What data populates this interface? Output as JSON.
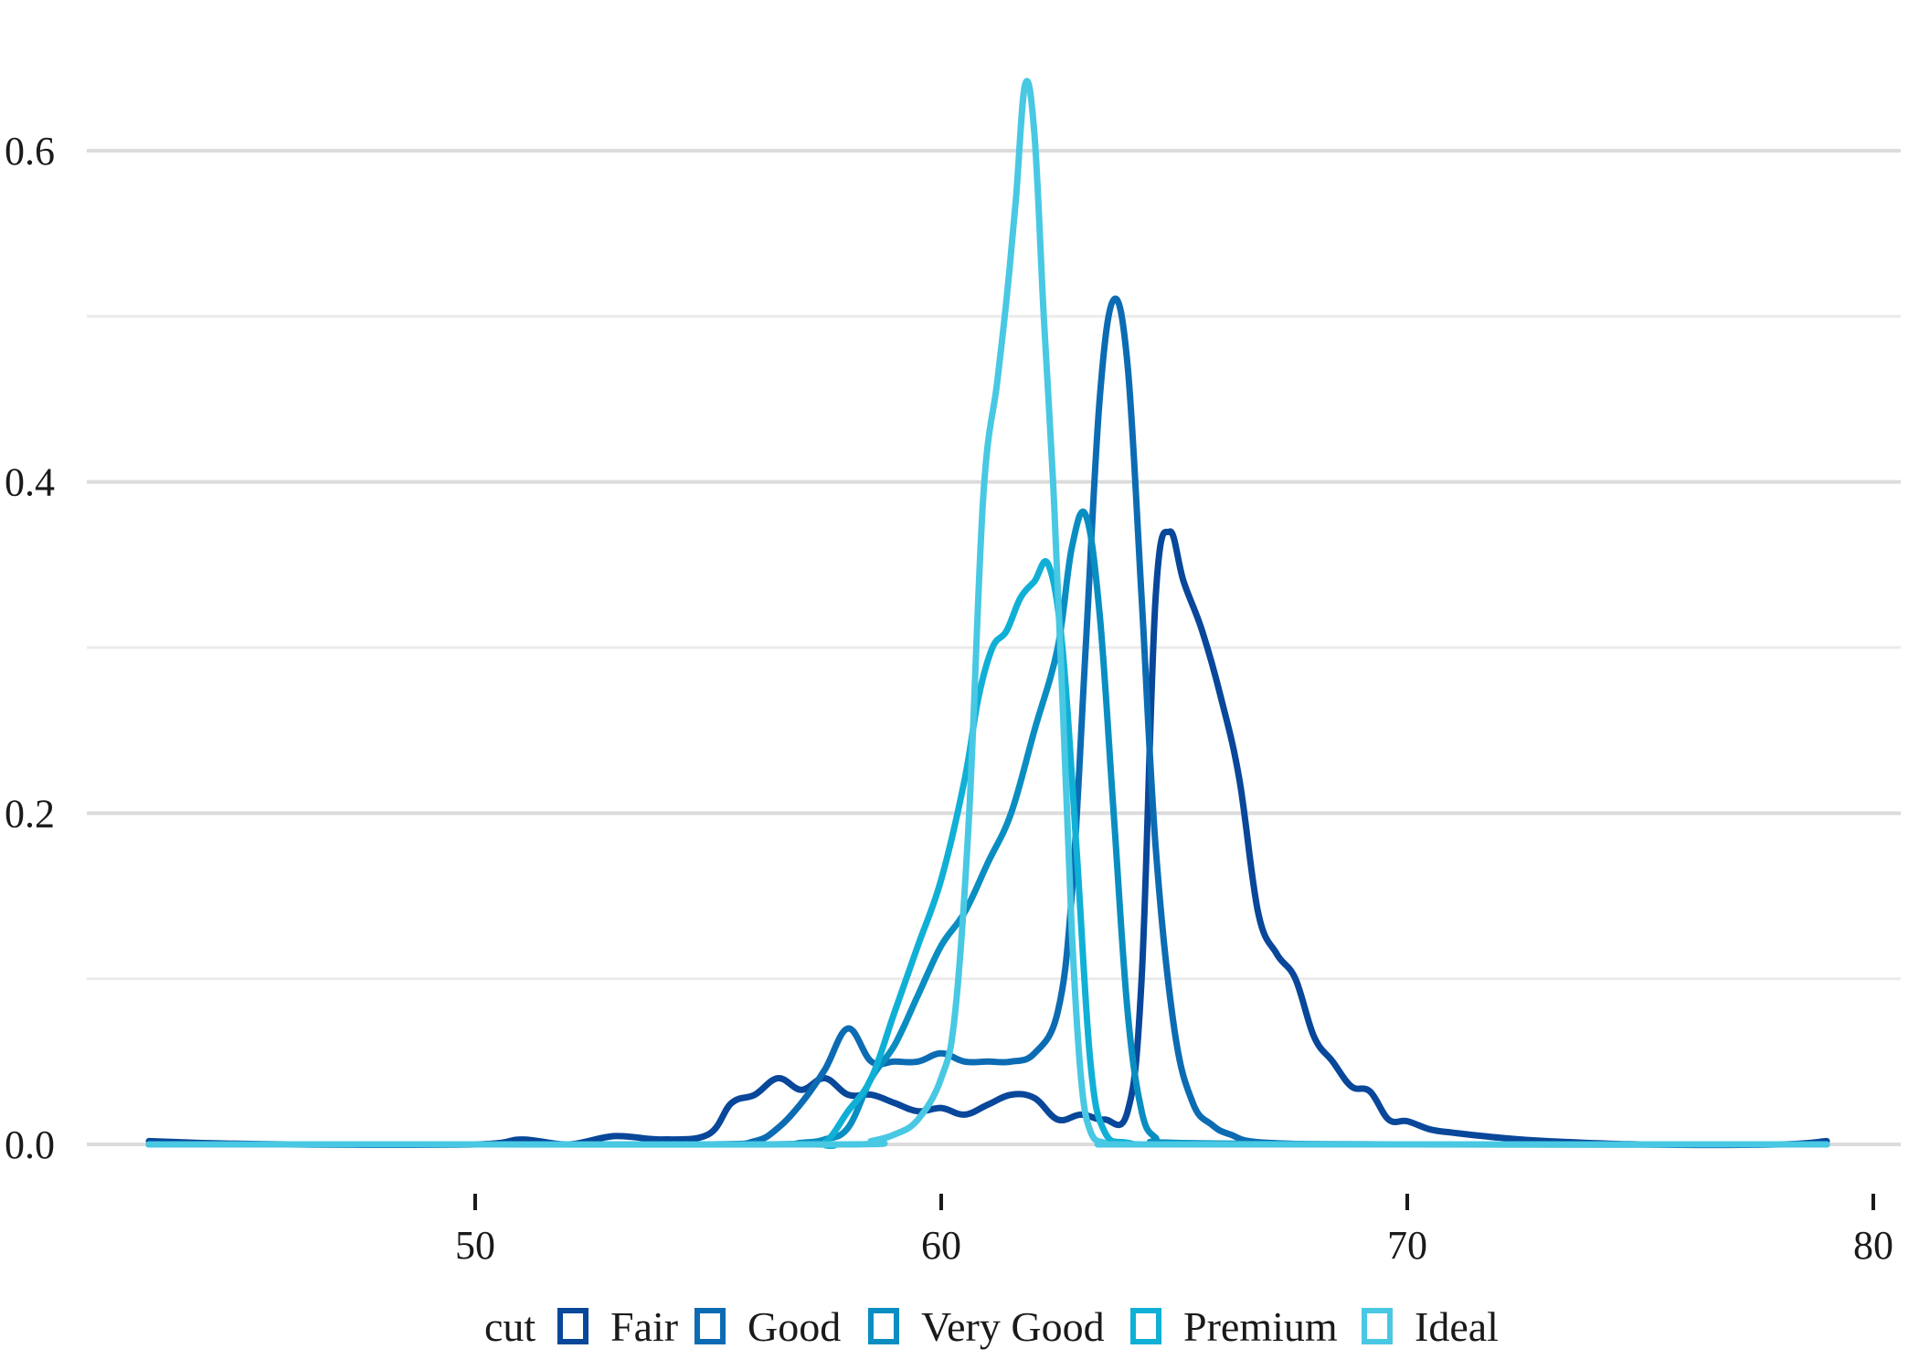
{
  "chart_data": {
    "type": "line",
    "title": "",
    "xlabel": "",
    "ylabel": "",
    "xlim": [
      42.5,
      80.5
    ],
    "ylim": [
      -0.04,
      0.68
    ],
    "x_ticks": [
      50,
      60,
      70,
      80
    ],
    "x_tick_labels": [
      "50",
      "60",
      "70",
      "80"
    ],
    "y_ticks": [
      0.0,
      0.2,
      0.4,
      0.6
    ],
    "y_tick_labels": [
      "0.0",
      "0.2",
      "0.4",
      "0.6"
    ],
    "y_minor_ticks": [
      0.1,
      0.3,
      0.5
    ],
    "grid": true,
    "legend": {
      "title": "cut",
      "position": "bottom",
      "entries": [
        "Fair",
        "Good",
        "Very Good",
        "Premium",
        "Ideal"
      ]
    },
    "series": [
      {
        "name": "Fair",
        "color": "#08479a",
        "points": [
          [
            43.0,
            0.002
          ],
          [
            44.0,
            0.001
          ],
          [
            46.0,
            0.0
          ],
          [
            50.0,
            0.0
          ],
          [
            51.0,
            0.003
          ],
          [
            52.0,
            0.0
          ],
          [
            53.0,
            0.005
          ],
          [
            54.0,
            0.003
          ],
          [
            55.0,
            0.006
          ],
          [
            55.5,
            0.025
          ],
          [
            56.0,
            0.03
          ],
          [
            56.5,
            0.04
          ],
          [
            57.0,
            0.033
          ],
          [
            57.5,
            0.04
          ],
          [
            58.0,
            0.03
          ],
          [
            58.5,
            0.03
          ],
          [
            59.0,
            0.025
          ],
          [
            59.5,
            0.02
          ],
          [
            60.0,
            0.022
          ],
          [
            60.5,
            0.018
          ],
          [
            61.0,
            0.024
          ],
          [
            61.5,
            0.03
          ],
          [
            62.0,
            0.028
          ],
          [
            62.5,
            0.015
          ],
          [
            63.0,
            0.018
          ],
          [
            63.5,
            0.015
          ],
          [
            64.0,
            0.02
          ],
          [
            64.3,
            0.1
          ],
          [
            64.6,
            0.33
          ],
          [
            64.9,
            0.37
          ],
          [
            65.2,
            0.34
          ],
          [
            65.6,
            0.31
          ],
          [
            66.0,
            0.27
          ],
          [
            66.4,
            0.22
          ],
          [
            66.8,
            0.14
          ],
          [
            67.2,
            0.115
          ],
          [
            67.6,
            0.1
          ],
          [
            68.0,
            0.065
          ],
          [
            68.4,
            0.05
          ],
          [
            68.8,
            0.035
          ],
          [
            69.2,
            0.032
          ],
          [
            69.6,
            0.015
          ],
          [
            70.0,
            0.014
          ],
          [
            70.5,
            0.009
          ],
          [
            71.0,
            0.007
          ],
          [
            72.0,
            0.004
          ],
          [
            73.0,
            0.002
          ],
          [
            75.0,
            0.0
          ],
          [
            78.0,
            0.0
          ],
          [
            79.0,
            0.002
          ]
        ]
      },
      {
        "name": "Good",
        "color": "#0c6cb3",
        "points": [
          [
            43.0,
            0.0
          ],
          [
            50.0,
            0.0
          ],
          [
            55.0,
            0.0
          ],
          [
            56.0,
            0.002
          ],
          [
            56.5,
            0.01
          ],
          [
            57.0,
            0.025
          ],
          [
            57.5,
            0.045
          ],
          [
            58.0,
            0.07
          ],
          [
            58.5,
            0.05
          ],
          [
            59.0,
            0.05
          ],
          [
            59.5,
            0.05
          ],
          [
            60.0,
            0.055
          ],
          [
            60.5,
            0.05
          ],
          [
            61.0,
            0.05
          ],
          [
            61.5,
            0.05
          ],
          [
            62.0,
            0.055
          ],
          [
            62.5,
            0.08
          ],
          [
            62.8,
            0.15
          ],
          [
            63.1,
            0.3
          ],
          [
            63.4,
            0.45
          ],
          [
            63.7,
            0.51
          ],
          [
            64.0,
            0.47
          ],
          [
            64.3,
            0.33
          ],
          [
            64.6,
            0.18
          ],
          [
            65.0,
            0.07
          ],
          [
            65.4,
            0.025
          ],
          [
            65.8,
            0.012
          ],
          [
            66.2,
            0.006
          ],
          [
            67.0,
            0.001
          ],
          [
            70.0,
            0.0
          ],
          [
            79.0,
            0.0
          ]
        ]
      },
      {
        "name": "Very Good",
        "color": "#0a8ec2",
        "points": [
          [
            43.0,
            0.0
          ],
          [
            50.0,
            0.0
          ],
          [
            56.0,
            0.0
          ],
          [
            57.0,
            0.001
          ],
          [
            57.5,
            0.003
          ],
          [
            58.0,
            0.01
          ],
          [
            58.5,
            0.04
          ],
          [
            59.0,
            0.06
          ],
          [
            59.5,
            0.09
          ],
          [
            60.0,
            0.12
          ],
          [
            60.5,
            0.14
          ],
          [
            61.0,
            0.17
          ],
          [
            61.5,
            0.2
          ],
          [
            62.0,
            0.25
          ],
          [
            62.5,
            0.3
          ],
          [
            62.8,
            0.36
          ],
          [
            63.1,
            0.38
          ],
          [
            63.4,
            0.32
          ],
          [
            63.7,
            0.2
          ],
          [
            64.0,
            0.08
          ],
          [
            64.3,
            0.02
          ],
          [
            64.6,
            0.004
          ],
          [
            65.0,
            0.001
          ],
          [
            70.0,
            0.0
          ],
          [
            79.0,
            0.0
          ]
        ]
      },
      {
        "name": "Premium",
        "color": "#10b0d6",
        "points": [
          [
            43.0,
            0.0
          ],
          [
            50.0,
            0.0
          ],
          [
            57.0,
            0.0
          ],
          [
            57.5,
            0.001
          ],
          [
            58.0,
            0.02
          ],
          [
            58.5,
            0.04
          ],
          [
            59.0,
            0.08
          ],
          [
            59.5,
            0.12
          ],
          [
            60.0,
            0.16
          ],
          [
            60.5,
            0.22
          ],
          [
            60.8,
            0.27
          ],
          [
            61.1,
            0.3
          ],
          [
            61.4,
            0.31
          ],
          [
            61.7,
            0.33
          ],
          [
            62.0,
            0.34
          ],
          [
            62.3,
            0.35
          ],
          [
            62.6,
            0.3
          ],
          [
            62.9,
            0.18
          ],
          [
            63.2,
            0.05
          ],
          [
            63.5,
            0.008
          ],
          [
            64.0,
            0.001
          ],
          [
            65.0,
            0.0
          ],
          [
            70.0,
            0.0
          ],
          [
            79.0,
            0.0
          ]
        ]
      },
      {
        "name": "Ideal",
        "color": "#48c8e3",
        "points": [
          [
            43.0,
            0.0
          ],
          [
            50.0,
            0.0
          ],
          [
            58.0,
            0.0
          ],
          [
            58.5,
            0.002
          ],
          [
            59.0,
            0.006
          ],
          [
            59.5,
            0.015
          ],
          [
            60.0,
            0.04
          ],
          [
            60.3,
            0.08
          ],
          [
            60.6,
            0.2
          ],
          [
            60.9,
            0.39
          ],
          [
            61.2,
            0.46
          ],
          [
            61.4,
            0.51
          ],
          [
            61.6,
            0.57
          ],
          [
            61.8,
            0.64
          ],
          [
            62.0,
            0.61
          ],
          [
            62.2,
            0.5
          ],
          [
            62.4,
            0.4
          ],
          [
            62.6,
            0.27
          ],
          [
            62.8,
            0.13
          ],
          [
            63.0,
            0.04
          ],
          [
            63.2,
            0.008
          ],
          [
            63.5,
            0.001
          ],
          [
            64.0,
            0.0
          ],
          [
            70.0,
            0.0
          ],
          [
            79.0,
            0.0
          ]
        ]
      }
    ]
  }
}
